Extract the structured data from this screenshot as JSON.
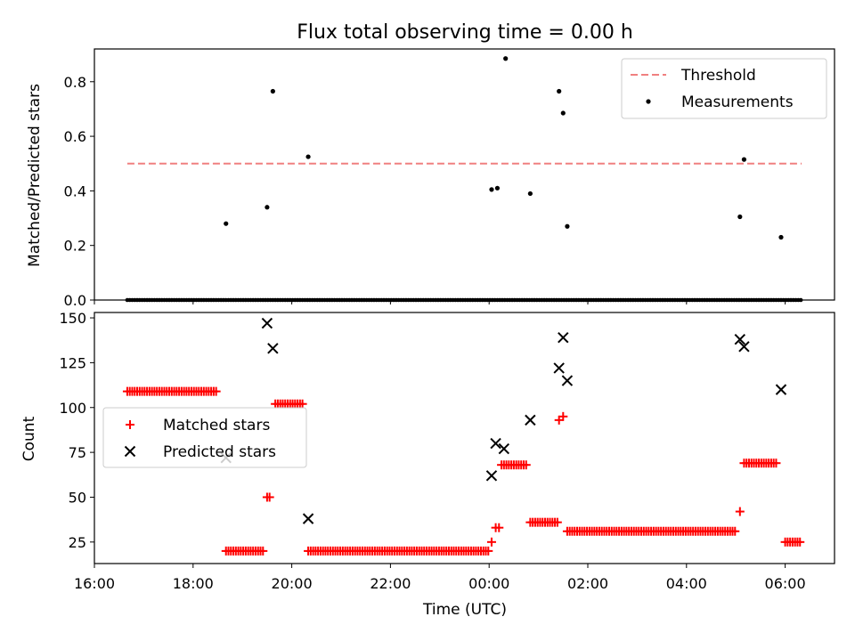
{
  "chart_data": [
    {
      "type": "scatter",
      "title": "Flux total observing time = 0.00 h",
      "ylabel": "Matched/Predicted stars",
      "xlabel": "",
      "xlim": [
        "16:00",
        "07:00"
      ],
      "ylim": [
        0,
        0.92
      ],
      "yticks": [
        0.0,
        0.2,
        0.4,
        0.6,
        0.8
      ],
      "ytick_labels": [
        "0.0",
        "0.2",
        "0.4",
        "0.6",
        "0.8"
      ],
      "grid": false,
      "legend_position": "top-right",
      "threshold": {
        "name": "Threshold",
        "value": 0.5,
        "x_range": [
          "16:40",
          "06:20"
        ],
        "color": "#f08080",
        "style": "dashed"
      },
      "series": [
        {
          "name": "Measurements",
          "marker": "dot",
          "color": "#000000",
          "points": [
            [
              "18:40",
              0.28
            ],
            [
              "19:30",
              0.34
            ],
            [
              "19:37",
              0.765
            ],
            [
              "20:20",
              0.525
            ],
            [
              "00:03",
              0.405
            ],
            [
              "00:10",
              0.41
            ],
            [
              "00:20",
              0.885
            ],
            [
              "00:50",
              0.39
            ],
            [
              "01:25",
              0.765
            ],
            [
              "01:30",
              0.685
            ],
            [
              "01:35",
              0.27
            ],
            [
              "05:05",
              0.305
            ],
            [
              "05:10",
              0.515
            ],
            [
              "05:55",
              0.23
            ]
          ],
          "zero_points": {
            "from": "16:40",
            "to": "06:20",
            "step_minutes": 3,
            "value": 0.0
          }
        }
      ]
    },
    {
      "type": "scatter",
      "title": "",
      "ylabel": "Count",
      "xlabel": "Time (UTC)",
      "xlim": [
        "16:00",
        "07:00"
      ],
      "ylim": [
        13,
        153
      ],
      "yticks": [
        25,
        50,
        75,
        100,
        125,
        150
      ],
      "ytick_labels": [
        "25",
        "50",
        "75",
        "100",
        "125",
        "150"
      ],
      "xticks": [
        "16:00",
        "18:00",
        "20:00",
        "22:00",
        "00:00",
        "02:00",
        "04:00",
        "06:00"
      ],
      "xtick_labels": [
        "16:00",
        "18:00",
        "20:00",
        "22:00",
        "00:00",
        "02:00",
        "04:00",
        "06:00"
      ],
      "grid": false,
      "legend_position": "center-left",
      "series": [
        {
          "name": "Matched stars",
          "marker": "plus",
          "color": "#ff0000",
          "segments": [
            {
              "from": "16:40",
              "to": "18:30",
              "value": 109
            },
            {
              "from": "18:40",
              "to": "19:25",
              "value": 20
            },
            {
              "from": "19:40",
              "to": "20:15",
              "value": 102
            },
            {
              "from": "20:20",
              "to": "00:00",
              "value": 20
            },
            {
              "from": "00:15",
              "to": "00:45",
              "value": 68
            },
            {
              "from": "00:50",
              "to": "01:25",
              "value": 36
            },
            {
              "from": "01:35",
              "to": "05:00",
              "value": 31
            },
            {
              "from": "05:10",
              "to": "05:50",
              "value": 69
            },
            {
              "from": "06:00",
              "to": "06:20",
              "value": 25
            }
          ],
          "points": [
            [
              "19:30",
              50
            ],
            [
              "19:33",
              50
            ],
            [
              "00:03",
              25
            ],
            [
              "00:08",
              33
            ],
            [
              "00:12",
              33
            ],
            [
              "01:25",
              93
            ],
            [
              "01:30",
              95
            ],
            [
              "05:05",
              42
            ]
          ]
        },
        {
          "name": "Predicted stars",
          "marker": "x",
          "color": "#000000",
          "points": [
            [
              "18:40",
              72
            ],
            [
              "19:30",
              147
            ],
            [
              "19:37",
              133
            ],
            [
              "20:20",
              38
            ],
            [
              "00:03",
              62
            ],
            [
              "00:08",
              80
            ],
            [
              "00:18",
              77
            ],
            [
              "00:50",
              93
            ],
            [
              "01:25",
              122
            ],
            [
              "01:30",
              139
            ],
            [
              "01:35",
              115
            ],
            [
              "05:05",
              138
            ],
            [
              "05:10",
              134
            ],
            [
              "05:55",
              110
            ]
          ]
        }
      ]
    }
  ]
}
